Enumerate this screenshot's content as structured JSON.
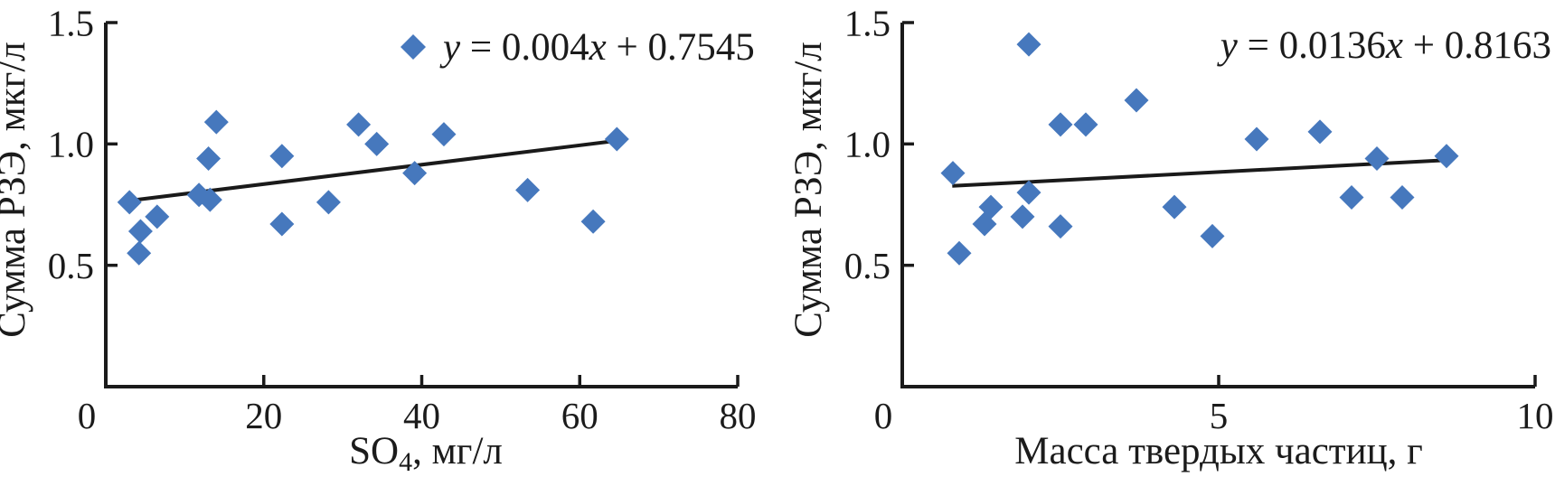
{
  "figure": {
    "background": "#ffffff",
    "marker_color": "#4678bd",
    "line_color": "#1a1a1a",
    "text_color": "#1b1b1b"
  },
  "chart_data": [
    {
      "id": "so4",
      "type": "scatter",
      "title": "",
      "ylabel": "Сумма РЗЭ, мкг/л",
      "xlabel": "SO4, мг/л",
      "xlabel_parts": [
        {
          "t": "SO"
        },
        {
          "t": "4",
          "sub": true
        },
        {
          "t": ", мг/л"
        }
      ],
      "xlim": [
        0,
        80
      ],
      "ylim": [
        0,
        1.5
      ],
      "xticks": [
        0,
        20,
        40,
        60,
        80
      ],
      "xtick_labels": [
        "0",
        "20",
        "40",
        "60",
        "80"
      ],
      "yticks": [
        0.5,
        1.0,
        1.5
      ],
      "ytick_labels": [
        "0.5",
        "1.0",
        "1.5"
      ],
      "grid": false,
      "points": [
        [
          3.0,
          0.76
        ],
        [
          4.2,
          0.55
        ],
        [
          4.4,
          0.64
        ],
        [
          6.5,
          0.7
        ],
        [
          11.8,
          0.79
        ],
        [
          13.0,
          0.94
        ],
        [
          13.2,
          0.77
        ],
        [
          14.0,
          1.09
        ],
        [
          22.3,
          0.95
        ],
        [
          22.3,
          0.67
        ],
        [
          28.2,
          0.76
        ],
        [
          32.0,
          1.08
        ],
        [
          34.3,
          1.0
        ],
        [
          39.1,
          0.88
        ],
        [
          42.8,
          1.04
        ],
        [
          53.4,
          0.81
        ],
        [
          61.7,
          0.68
        ],
        [
          64.7,
          1.02
        ]
      ],
      "trendline": {
        "slope": 0.004,
        "intercept": 0.7545,
        "slope_text": "0.004",
        "intercept_text": "0.7545",
        "x_start": 2.5,
        "x_end": 65.3,
        "equation": "y = 0.004x + 0.7545"
      },
      "legend": {
        "show_marker": true,
        "label": "y = 0.004x + 0.7545",
        "position": "top-right"
      }
    },
    {
      "id": "mass",
      "type": "scatter",
      "title": "",
      "ylabel": "Сумма РЗЭ, мкг/л",
      "xlabel": "Масса твердых частиц, г",
      "xlabel_parts": [
        {
          "t": "Масса твердых частиц, г"
        }
      ],
      "xlim": [
        0,
        10
      ],
      "ylim": [
        0,
        1.5
      ],
      "xticks": [
        0,
        5,
        10
      ],
      "xtick_labels": [
        "0",
        "5",
        "10"
      ],
      "yticks": [
        0.5,
        1.0,
        1.5
      ],
      "ytick_labels": [
        "0.5",
        "1.0",
        "1.5"
      ],
      "grid": false,
      "points": [
        [
          0.8,
          0.88
        ],
        [
          0.9,
          0.55
        ],
        [
          1.3,
          0.67
        ],
        [
          1.4,
          0.74
        ],
        [
          1.9,
          0.7
        ],
        [
          2.0,
          0.8
        ],
        [
          2.0,
          1.41
        ],
        [
          2.5,
          0.66
        ],
        [
          2.5,
          1.08
        ],
        [
          2.9,
          1.08
        ],
        [
          3.7,
          1.18
        ],
        [
          4.3,
          0.74
        ],
        [
          4.9,
          0.62
        ],
        [
          5.6,
          1.02
        ],
        [
          6.6,
          1.05
        ],
        [
          7.1,
          0.78
        ],
        [
          7.5,
          0.94
        ],
        [
          7.9,
          0.78
        ],
        [
          8.6,
          0.95
        ]
      ],
      "trendline": {
        "slope": 0.0136,
        "intercept": 0.8163,
        "slope_text": "0.0136",
        "intercept_text": "0.8163",
        "x_start": 0.79,
        "x_end": 8.6,
        "equation": "y = 0.0136x + 0.8163"
      },
      "legend": {
        "show_marker": false,
        "label": "y = 0.0136x + 0.8163",
        "position": "top-right"
      }
    }
  ]
}
